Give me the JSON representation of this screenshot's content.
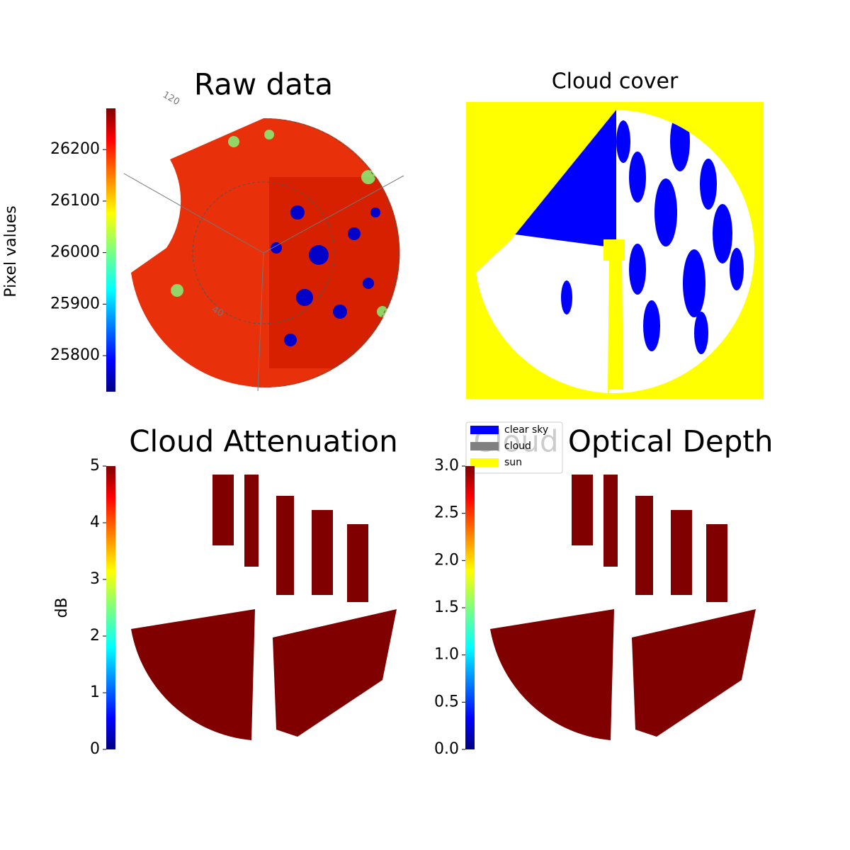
{
  "chart_data": [
    {
      "type": "image",
      "title": "Raw data",
      "colorbar_label": "Pixel values",
      "colormap": "jet",
      "clim": [
        25730,
        26280
      ],
      "cticks": [
        25800,
        25900,
        26000,
        26100,
        26200
      ],
      "annotations": [
        "120",
        "40"
      ]
    },
    {
      "type": "image",
      "title": "Cloud cover",
      "legend": [
        {
          "name": "clear sky",
          "color": "#0000ff"
        },
        {
          "name": "cloud",
          "color": "#808080"
        },
        {
          "name": "sun",
          "color": "#ffff00"
        }
      ]
    },
    {
      "type": "image",
      "title": "Cloud Attenuation",
      "colorbar_label": "dB",
      "colormap": "jet",
      "clim": [
        0,
        5
      ],
      "cticks": [
        0,
        1,
        2,
        3,
        4,
        5
      ]
    },
    {
      "type": "image",
      "title": "Cloud Optical Depth",
      "colormap": "jet",
      "clim": [
        0,
        3
      ],
      "cticks": [
        {
          "value": 0,
          "label": "0.0"
        },
        {
          "value": 0.5,
          "label": "0.5"
        },
        {
          "value": 1,
          "label": "1.0"
        },
        {
          "value": 1.5,
          "label": "1.5"
        },
        {
          "value": 2,
          "label": "2.0"
        },
        {
          "value": 2.5,
          "label": "2.5"
        },
        {
          "value": 3,
          "label": "3.0"
        }
      ]
    }
  ]
}
